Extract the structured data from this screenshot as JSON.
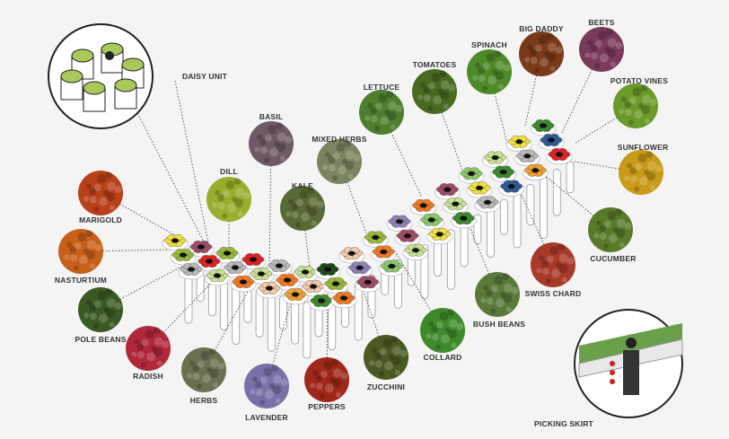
{
  "plants": [
    {
      "label": "BASIL",
      "color": "#6e5a66"
    },
    {
      "label": "DILL",
      "color": "#9aae2e"
    },
    {
      "label": "KALE",
      "color": "#5a6a34"
    },
    {
      "label": "MIXED HERBS",
      "color": "#7b8460"
    },
    {
      "label": "LETTUCE",
      "color": "#4e7e2e"
    },
    {
      "label": "TOMATOES",
      "color": "#4a6a22"
    },
    {
      "label": "SPINACH",
      "color": "#4f8a2a"
    },
    {
      "label": "BIG DADDY",
      "color": "#7a3a1a"
    },
    {
      "label": "BEETS",
      "color": "#7a3a5a"
    },
    {
      "label": "POTATO VINES",
      "color": "#6a9a2a"
    },
    {
      "label": "SUNFLOWER",
      "color": "#c89a18"
    },
    {
      "label": "CUCUMBER",
      "color": "#5a7a2a"
    },
    {
      "label": "SWISS CHARD",
      "color": "#a83a2a"
    },
    {
      "label": "BUSH BEANS",
      "color": "#5a7a3a"
    },
    {
      "label": "COLLARD",
      "color": "#3e8a2a"
    },
    {
      "label": "ZUCCHINI",
      "color": "#4a5a22"
    },
    {
      "label": "PEPPERS",
      "color": "#a0281a"
    },
    {
      "label": "LAVENDER",
      "color": "#7a70a8"
    },
    {
      "label": "HERBS",
      "color": "#6a7050"
    },
    {
      "label": "RADISH",
      "color": "#b0283a"
    },
    {
      "label": "POLE BEANS",
      "color": "#3a5a22"
    },
    {
      "label": "NASTURTIUM",
      "color": "#c8601a"
    },
    {
      "label": "MARIGOLD",
      "color": "#b8401a"
    }
  ],
  "insets": {
    "daisy_unit": {
      "label": "DAISY UNIT",
      "color": "#a8c85a"
    },
    "picking_skirt": {
      "label": "PICKING SKIRT"
    }
  },
  "flower_colors": [
    "#f0e040",
    "#e02020",
    "#f07820",
    "#3a8a2a",
    "#1a4a1a",
    "#a04a6a",
    "#b8b8b8",
    "#f4c8a8",
    "#8ac868",
    "#2a5a9a",
    "#98b838",
    "#c8e090",
    "#f0a030",
    "#9080b8"
  ]
}
